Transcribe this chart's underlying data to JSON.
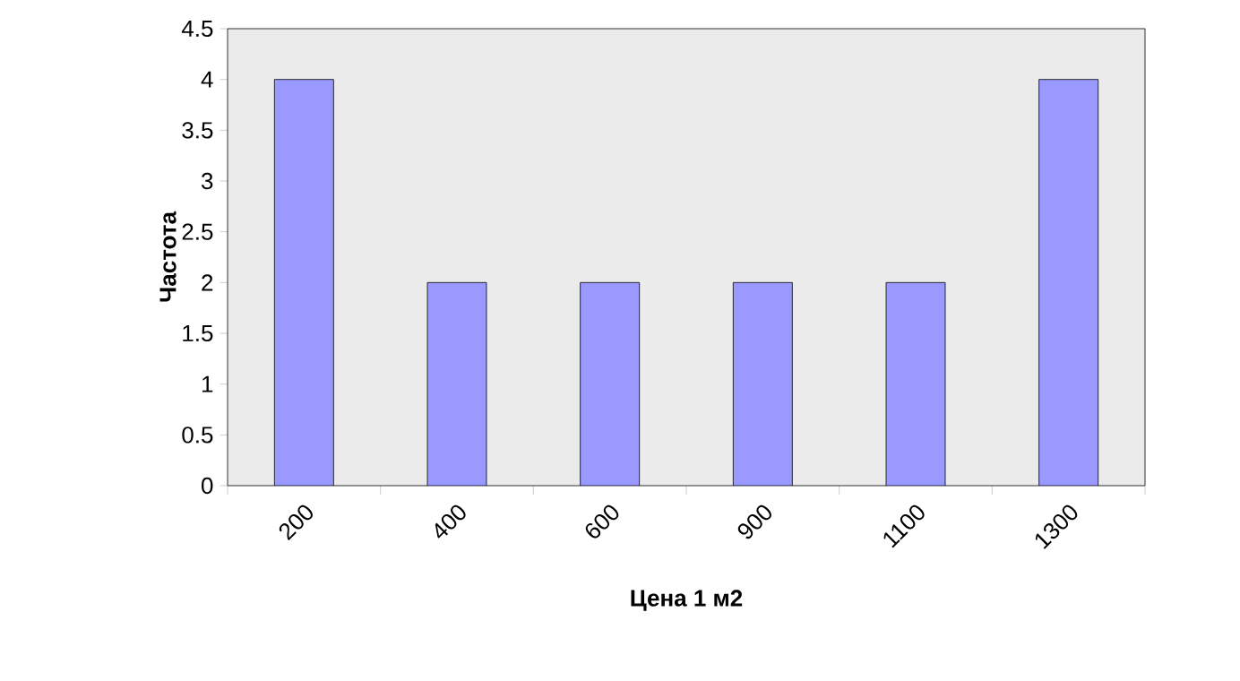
{
  "chart_data": {
    "type": "bar",
    "xlabel": "Цена 1 м2",
    "ylabel": "Частота",
    "categories": [
      "200",
      "400",
      "600",
      "900",
      "1100",
      "1300"
    ],
    "values": [
      4,
      2,
      2,
      2,
      2,
      4
    ],
    "color": "#9999ff",
    "ylim": [
      0,
      4.5
    ],
    "yticks": [
      0,
      0.5,
      1,
      1.5,
      2,
      2.5,
      3,
      3.5,
      4,
      4.5
    ],
    "grid": false
  }
}
